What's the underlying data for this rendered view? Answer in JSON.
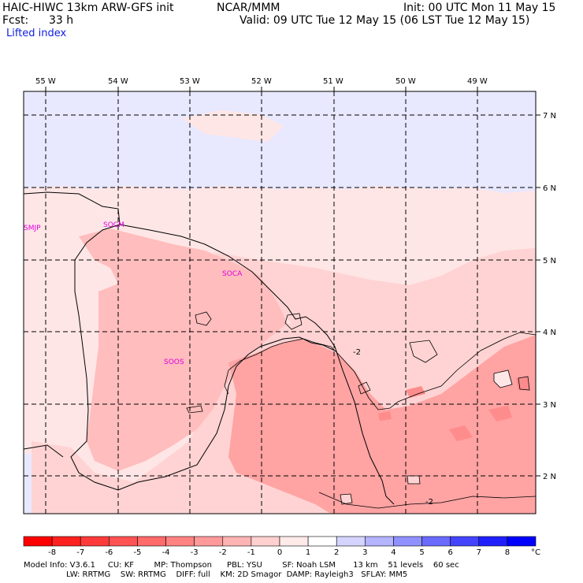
{
  "header": {
    "model_line": "HAIC-HIWC 13km ARW-GFS init",
    "org": "NCAR/MMM",
    "init": "Init: 00 UTC Mon 11 May 15",
    "fcst_label": "Fcst:",
    "fcst_value": "33 h",
    "valid": "Valid: 09 UTC Tue 12 May 15 (06 LST Tue 12 May 15)",
    "field": "Lifted index"
  },
  "map": {
    "lon_labels": [
      "55 W",
      "54 W",
      "53 W",
      "52 W",
      "51 W",
      "50 W",
      "49 W"
    ],
    "lat_labels": [
      "7 N",
      "6 N",
      "5 N",
      "4 N",
      "3 N",
      "2 N"
    ],
    "stations": [
      "SMJP",
      "SOCM",
      "SOCA",
      "SOOS"
    ],
    "contour_labels": [
      "-2",
      "-2"
    ],
    "colors": {
      "cool_light": "#e8e8ff",
      "warm_lightest": "#ffe6e6",
      "warm_light": "#ffd3d3",
      "warm_mid": "#ffbdbd",
      "warm_dark": "#ffa3a3",
      "warm_darker": "#ff8c8c"
    }
  },
  "colorbar": {
    "ticks": [
      "-8",
      "-7",
      "-6",
      "-5",
      "-4",
      "-3",
      "-2",
      "-1",
      "0",
      "1",
      "2",
      "3",
      "4",
      "5",
      "6",
      "7",
      "8"
    ],
    "unit": "°C",
    "colors": [
      "#ff0000",
      "#ff2020",
      "#ff3a3a",
      "#ff5252",
      "#ff6a6a",
      "#ff8282",
      "#ff9a9a",
      "#ffb4b4",
      "#ffd0d0",
      "#ffeaea",
      "#ffffff",
      "#d4d4ff",
      "#b4b4ff",
      "#9090ff",
      "#6a6aff",
      "#4444ff",
      "#2020ff",
      "#0000ff"
    ]
  },
  "footer": {
    "line1": "Model Info: V3.6.1     CU: KF        MP: Thompson      PBL: YSU        SF: Noah LSM       13 km    51 levels    60 sec",
    "line2": "                 LW: RRTMG    SW: RRTMG    DIFF: full    KM: 2D Smagor  DAMP: Rayleigh3   SFLAY: MM5"
  }
}
